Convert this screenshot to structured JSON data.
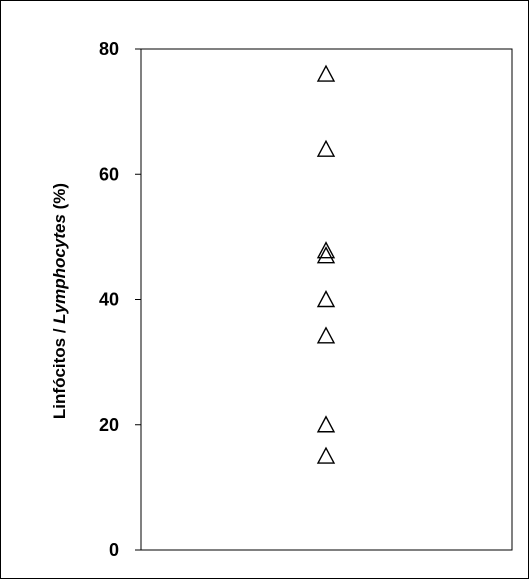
{
  "chart_data": {
    "type": "scatter",
    "ylabel_part1": "Linfócitos / ",
    "ylabel_part2": "Lymphocytes",
    "ylabel_part3": " (%)",
    "ylim": [
      0,
      80
    ],
    "yticks": [
      0,
      20,
      40,
      60,
      80
    ],
    "ytick_labels": [
      "0",
      "20",
      "40",
      "60",
      "80"
    ],
    "marker": "open-triangle",
    "marker_color": "#000000",
    "series": [
      {
        "values": [
          76,
          64,
          47.8,
          47,
          40,
          34.2,
          20,
          15
        ]
      }
    ]
  }
}
